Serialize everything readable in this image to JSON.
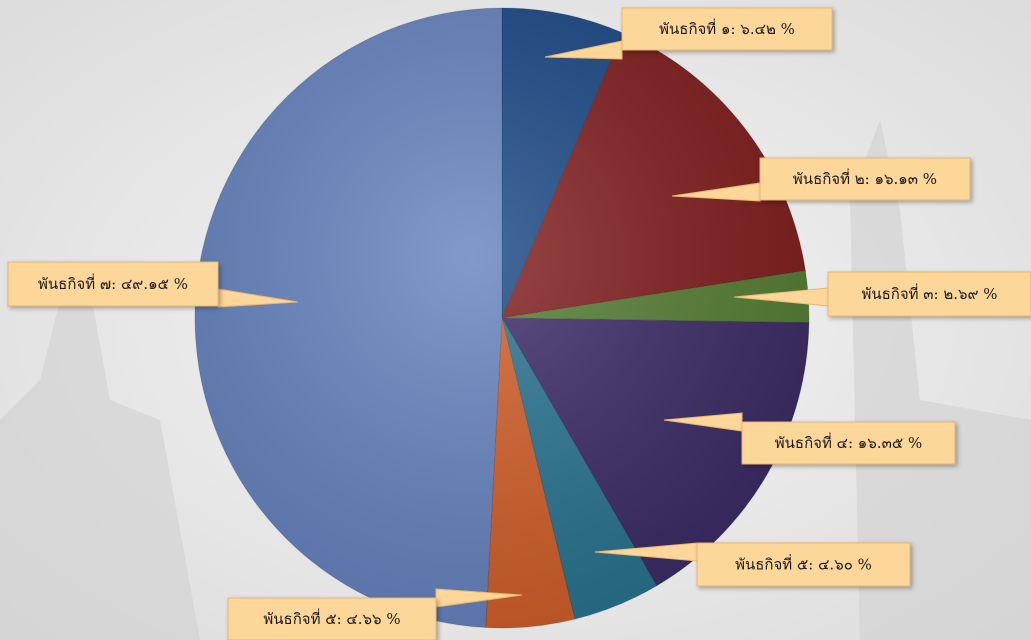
{
  "chart_data": {
    "type": "pie",
    "value_labels": [
      "พันธกิจที่ ๑: ๖.๔๒ %",
      "พันธกิจที่ ๒: ๑๖.๑๓ %",
      "พันธกิจที่ ๓: ๒.๖๙ %",
      "พันธกิจที่ ๔: ๑๖.๓๕ %",
      "พันธกิจที่ ๕: ๔.๖๐ %",
      "พันธกิจที่ ๕: ๔.๖๖ %",
      "พันธกิจที่ ๗: ๔๙.๑๕ %"
    ],
    "values": [
      6.42,
      16.13,
      2.69,
      16.35,
      4.6,
      4.66,
      49.15
    ],
    "colors": [
      "#1c4a87",
      "#821f1f",
      "#567f35",
      "#3e2d68",
      "#2a7591",
      "#d2602a",
      "#6784c0"
    ]
  }
}
